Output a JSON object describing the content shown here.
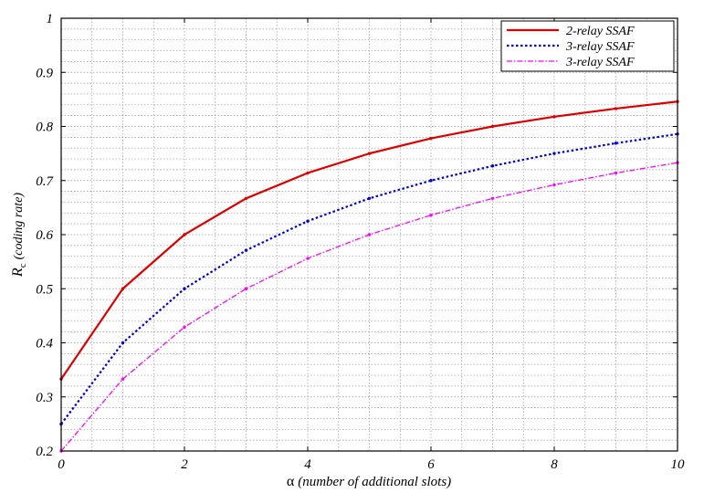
{
  "chart_data": {
    "type": "line",
    "title": "",
    "xlabel": {
      "symbol": "α",
      "text": "(number of additional slots)"
    },
    "ylabel": {
      "symbol": "R",
      "subscript": "c",
      "text": "(coding rate)"
    },
    "xlim": [
      0,
      10
    ],
    "ylim": [
      0.2,
      1
    ],
    "x_ticks": [
      "0",
      "2",
      "4",
      "6",
      "8",
      "10"
    ],
    "y_ticks": [
      "0.2",
      "0.3",
      "0.4",
      "0.5",
      "0.6",
      "0.7",
      "0.8",
      "0.9",
      "1"
    ],
    "grid": true,
    "legend_position": "top-right",
    "x": [
      0,
      1,
      2,
      3,
      4,
      5,
      6,
      7,
      8,
      9,
      10
    ],
    "series": [
      {
        "name": "2-relay SSAF",
        "color": "#e00000",
        "style": "solid",
        "values": [
          0.333,
          0.5,
          0.6,
          0.667,
          0.714,
          0.75,
          0.778,
          0.8,
          0.818,
          0.833,
          0.846
        ]
      },
      {
        "name": "3-relay SSAF",
        "color": "#0000e0",
        "style": "dotted",
        "values": [
          0.25,
          0.4,
          0.5,
          0.571,
          0.625,
          0.667,
          0.7,
          0.727,
          0.75,
          0.769,
          0.786
        ]
      },
      {
        "name": "3-relay SSAF",
        "color": "#ff00ff",
        "style": "dashdot",
        "values": [
          0.2,
          0.333,
          0.429,
          0.5,
          0.556,
          0.6,
          0.636,
          0.667,
          0.692,
          0.714,
          0.733
        ]
      }
    ]
  }
}
